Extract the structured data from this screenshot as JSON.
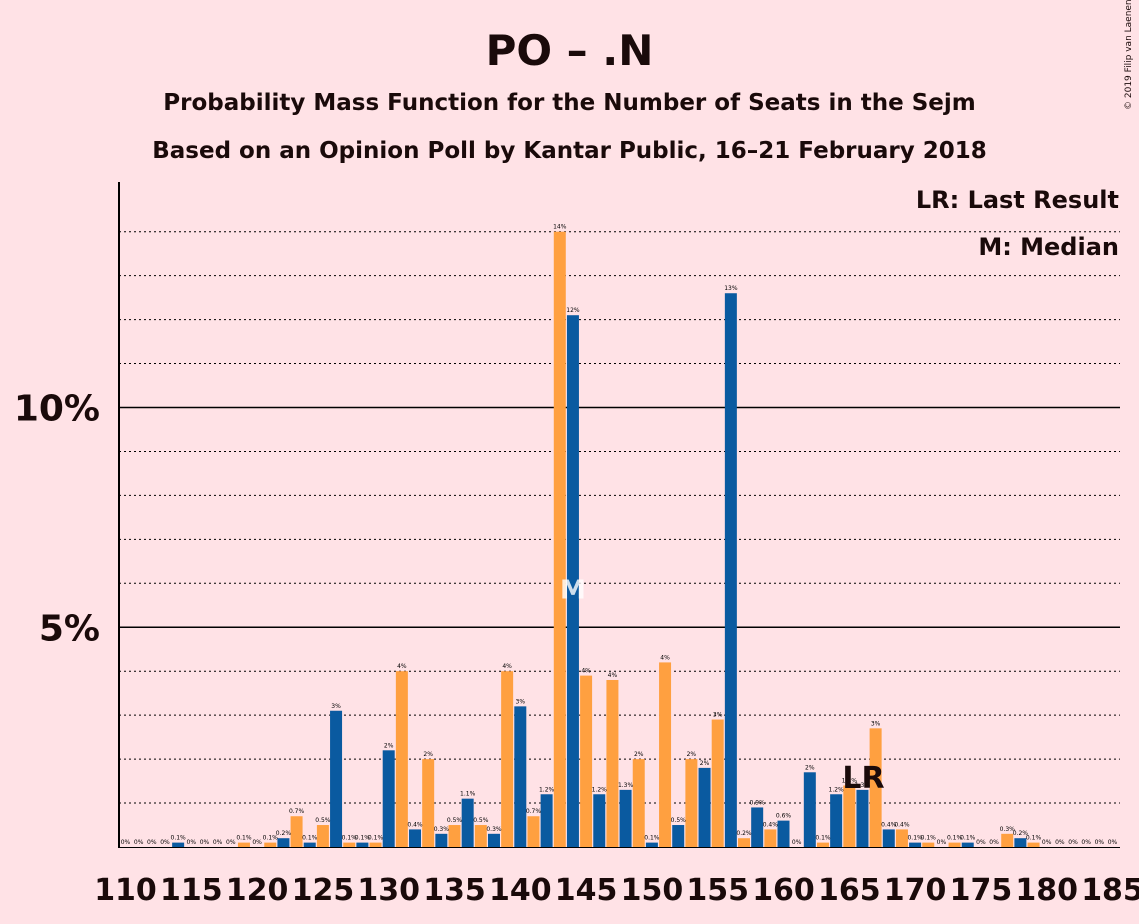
{
  "title": "PO – .N",
  "subtitle1": "Probability Mass Function for the Number of Seats in the Sejm",
  "subtitle2": "Based on an Opinion Poll by Kantar Public, 16–21 February 2018",
  "copyright": "© 2019 Filip van Laenen",
  "legend": {
    "last_result": "LR: Last Result",
    "median": "M: Median"
  },
  "markers": {
    "median_label": "M",
    "median_seats": 144,
    "last_result_label": "LR",
    "last_result_seats": 166
  },
  "colors": {
    "background": "#ffe2e6",
    "blue": "#0a5aa0",
    "orange": "#ffa040",
    "axis": "#000000"
  },
  "chart_data": {
    "type": "bar",
    "x": [
      110,
      111,
      112,
      113,
      114,
      115,
      116,
      117,
      118,
      119,
      120,
      121,
      122,
      123,
      124,
      125,
      126,
      127,
      128,
      129,
      130,
      131,
      132,
      133,
      134,
      135,
      136,
      137,
      138,
      139,
      140,
      141,
      142,
      143,
      144,
      145,
      146,
      147,
      148,
      149,
      150,
      151,
      152,
      153,
      154,
      155,
      156,
      157,
      158,
      159,
      160,
      161,
      162,
      163,
      164,
      165,
      166,
      167,
      168,
      169,
      170,
      171,
      172,
      173,
      174,
      175,
      176,
      177,
      178,
      179,
      180,
      181,
      182,
      183,
      184,
      185
    ],
    "values": [
      0,
      0,
      0,
      0,
      0.1,
      0,
      0,
      0,
      0,
      0.1,
      0,
      0.1,
      0.2,
      0.7,
      0.1,
      0.5,
      3.1,
      0.1,
      0.1,
      0.1,
      2.2,
      4.0,
      0.4,
      2.0,
      0.3,
      0.5,
      1.1,
      0.5,
      0.3,
      4.0,
      3.2,
      0.7,
      1.2,
      14.0,
      12.1,
      3.9,
      1.2,
      3.8,
      1.3,
      2.0,
      0.1,
      4.2,
      0.5,
      2.0,
      1.8,
      2.9,
      12.6,
      0.2,
      0.9,
      0.4,
      0.6,
      0,
      1.7,
      0.1,
      1.2,
      1.4,
      1.3,
      2.7,
      0.4,
      0.4,
      0.1,
      0.1,
      0,
      0.1,
      0.1,
      0,
      0,
      0.3,
      0.2,
      0.1,
      0,
      0,
      0,
      0,
      0,
      0
    ],
    "labels": [
      "0%",
      "0%",
      "0%",
      "0%",
      "0.1%",
      "0%",
      "0%",
      "0%",
      "0%",
      "0.1%",
      "0%",
      "0.1%",
      "0.2%",
      "0.7%",
      "0.1%",
      "0.5%",
      "3%",
      "0.1%",
      "0.1%",
      "0.1%",
      "2%",
      "4%",
      "0.4%",
      "2%",
      "0.3%",
      "0.5%",
      "1.1%",
      "0.5%",
      "0.3%",
      "4%",
      "3%",
      "0.7%",
      "1.2%",
      "14%",
      "12%",
      "4%",
      "1.2%",
      "4%",
      "1.3%",
      "2%",
      "0.1%",
      "4%",
      "0.5%",
      "2%",
      "2%",
      "3%",
      "13%",
      "0.2%",
      "0.9%",
      "0.4%",
      "0.6%",
      "0%",
      "2%",
      "0.1%",
      "1.2%",
      "1.4%",
      "1.3%",
      "3%",
      "0.4%",
      "0.4%",
      "0.1%",
      "0.1%",
      "0%",
      "0.1%",
      "0.1%",
      "0%",
      "0%",
      "0.3%",
      "0.2%",
      "0.1%",
      "0%",
      "0%",
      "0%",
      "0%",
      "0%",
      "0%"
    ],
    "xticks": [
      110,
      115,
      120,
      125,
      130,
      135,
      140,
      145,
      150,
      155,
      160,
      165,
      170,
      175,
      180,
      185
    ],
    "yticks": [
      {
        "value": 5,
        "label": "5%"
      },
      {
        "value": 10,
        "label": "10%"
      }
    ],
    "ylim": [
      0,
      15
    ],
    "grid": "dotted each 1%, solid at 5% and 10%"
  }
}
